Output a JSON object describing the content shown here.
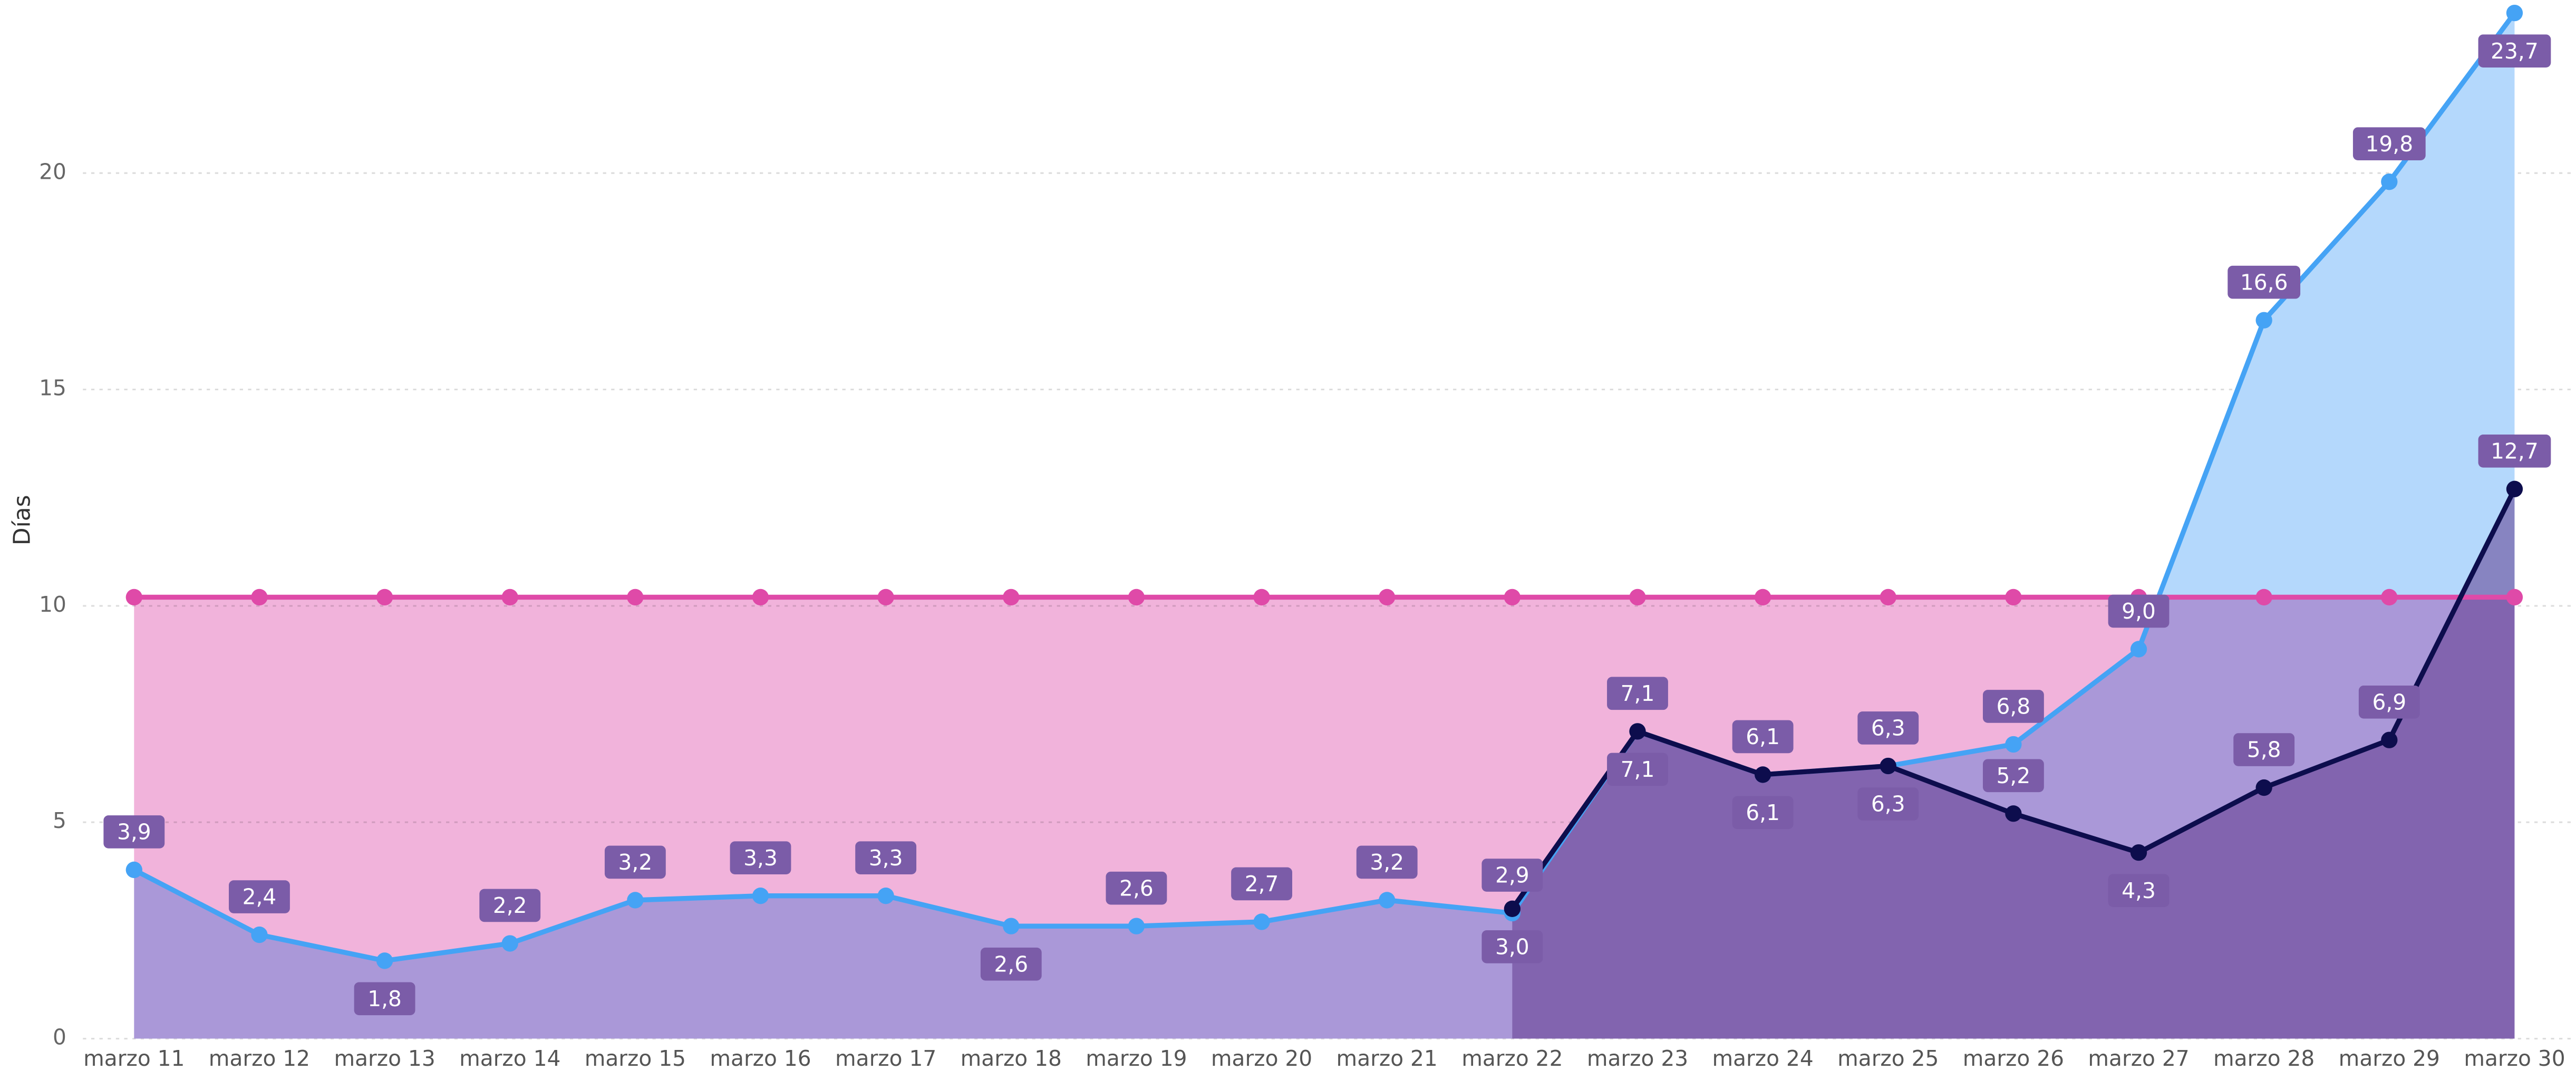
{
  "chart_data": {
    "type": "line",
    "y_label": "Días",
    "categories": [
      "marzo 11",
      "marzo 12",
      "marzo 13",
      "marzo 14",
      "marzo 15",
      "marzo 16",
      "marzo 17",
      "marzo 18",
      "marzo 19",
      "marzo 20",
      "marzo 21",
      "marzo 22",
      "marzo 23",
      "marzo 24",
      "marzo 25",
      "marzo 26",
      "marzo 27",
      "marzo 28",
      "marzo 29",
      "marzo 30"
    ],
    "series": [
      {
        "color": "#df4aa8",
        "area": "#f1b3db",
        "values": [
          10.2,
          10.2,
          10.2,
          10.2,
          10.2,
          10.2,
          10.2,
          10.2,
          10.2,
          10.2,
          10.2,
          10.2,
          10.2,
          10.2,
          10.2,
          10.2,
          10.2,
          10.2,
          10.2,
          10.2
        ]
      },
      {
        "color": "#45a3f5",
        "area": "#b4d8fc",
        "values": [
          3.9,
          2.4,
          1.8,
          2.2,
          3.2,
          3.3,
          3.3,
          2.6,
          2.6,
          2.7,
          3.2,
          2.9,
          7.1,
          6.1,
          6.3,
          6.8,
          9.0,
          16.6,
          19.8,
          23.7
        ],
        "value_labels": [
          "3,9",
          "2,4",
          "1,8",
          "2,2",
          "3,2",
          "3,3",
          "3,3",
          "2,6",
          "2,6",
          "2,7",
          "3,2",
          "2,9",
          "7,1",
          "6,1",
          "6,3",
          "6,8",
          "9,0",
          "16,6",
          "19,8",
          "23,7"
        ]
      },
      {
        "color": "#0d0d4d",
        "area": "#5a2f86",
        "values": [
          null,
          null,
          null,
          null,
          null,
          null,
          null,
          null,
          null,
          null,
          null,
          3.0,
          7.1,
          6.1,
          6.3,
          5.2,
          4.3,
          5.8,
          6.9,
          12.7
        ],
        "value_labels": [
          null,
          null,
          null,
          null,
          null,
          null,
          null,
          null,
          null,
          null,
          null,
          "3,0",
          "7,1",
          "6,1",
          "6,3",
          "5,2",
          "4,3",
          "5,8",
          "6,9",
          "12,7"
        ]
      }
    ],
    "ylim": [
      0,
      24
    ],
    "yticks": [
      0,
      5,
      10,
      15,
      20
    ],
    "grid": true
  }
}
